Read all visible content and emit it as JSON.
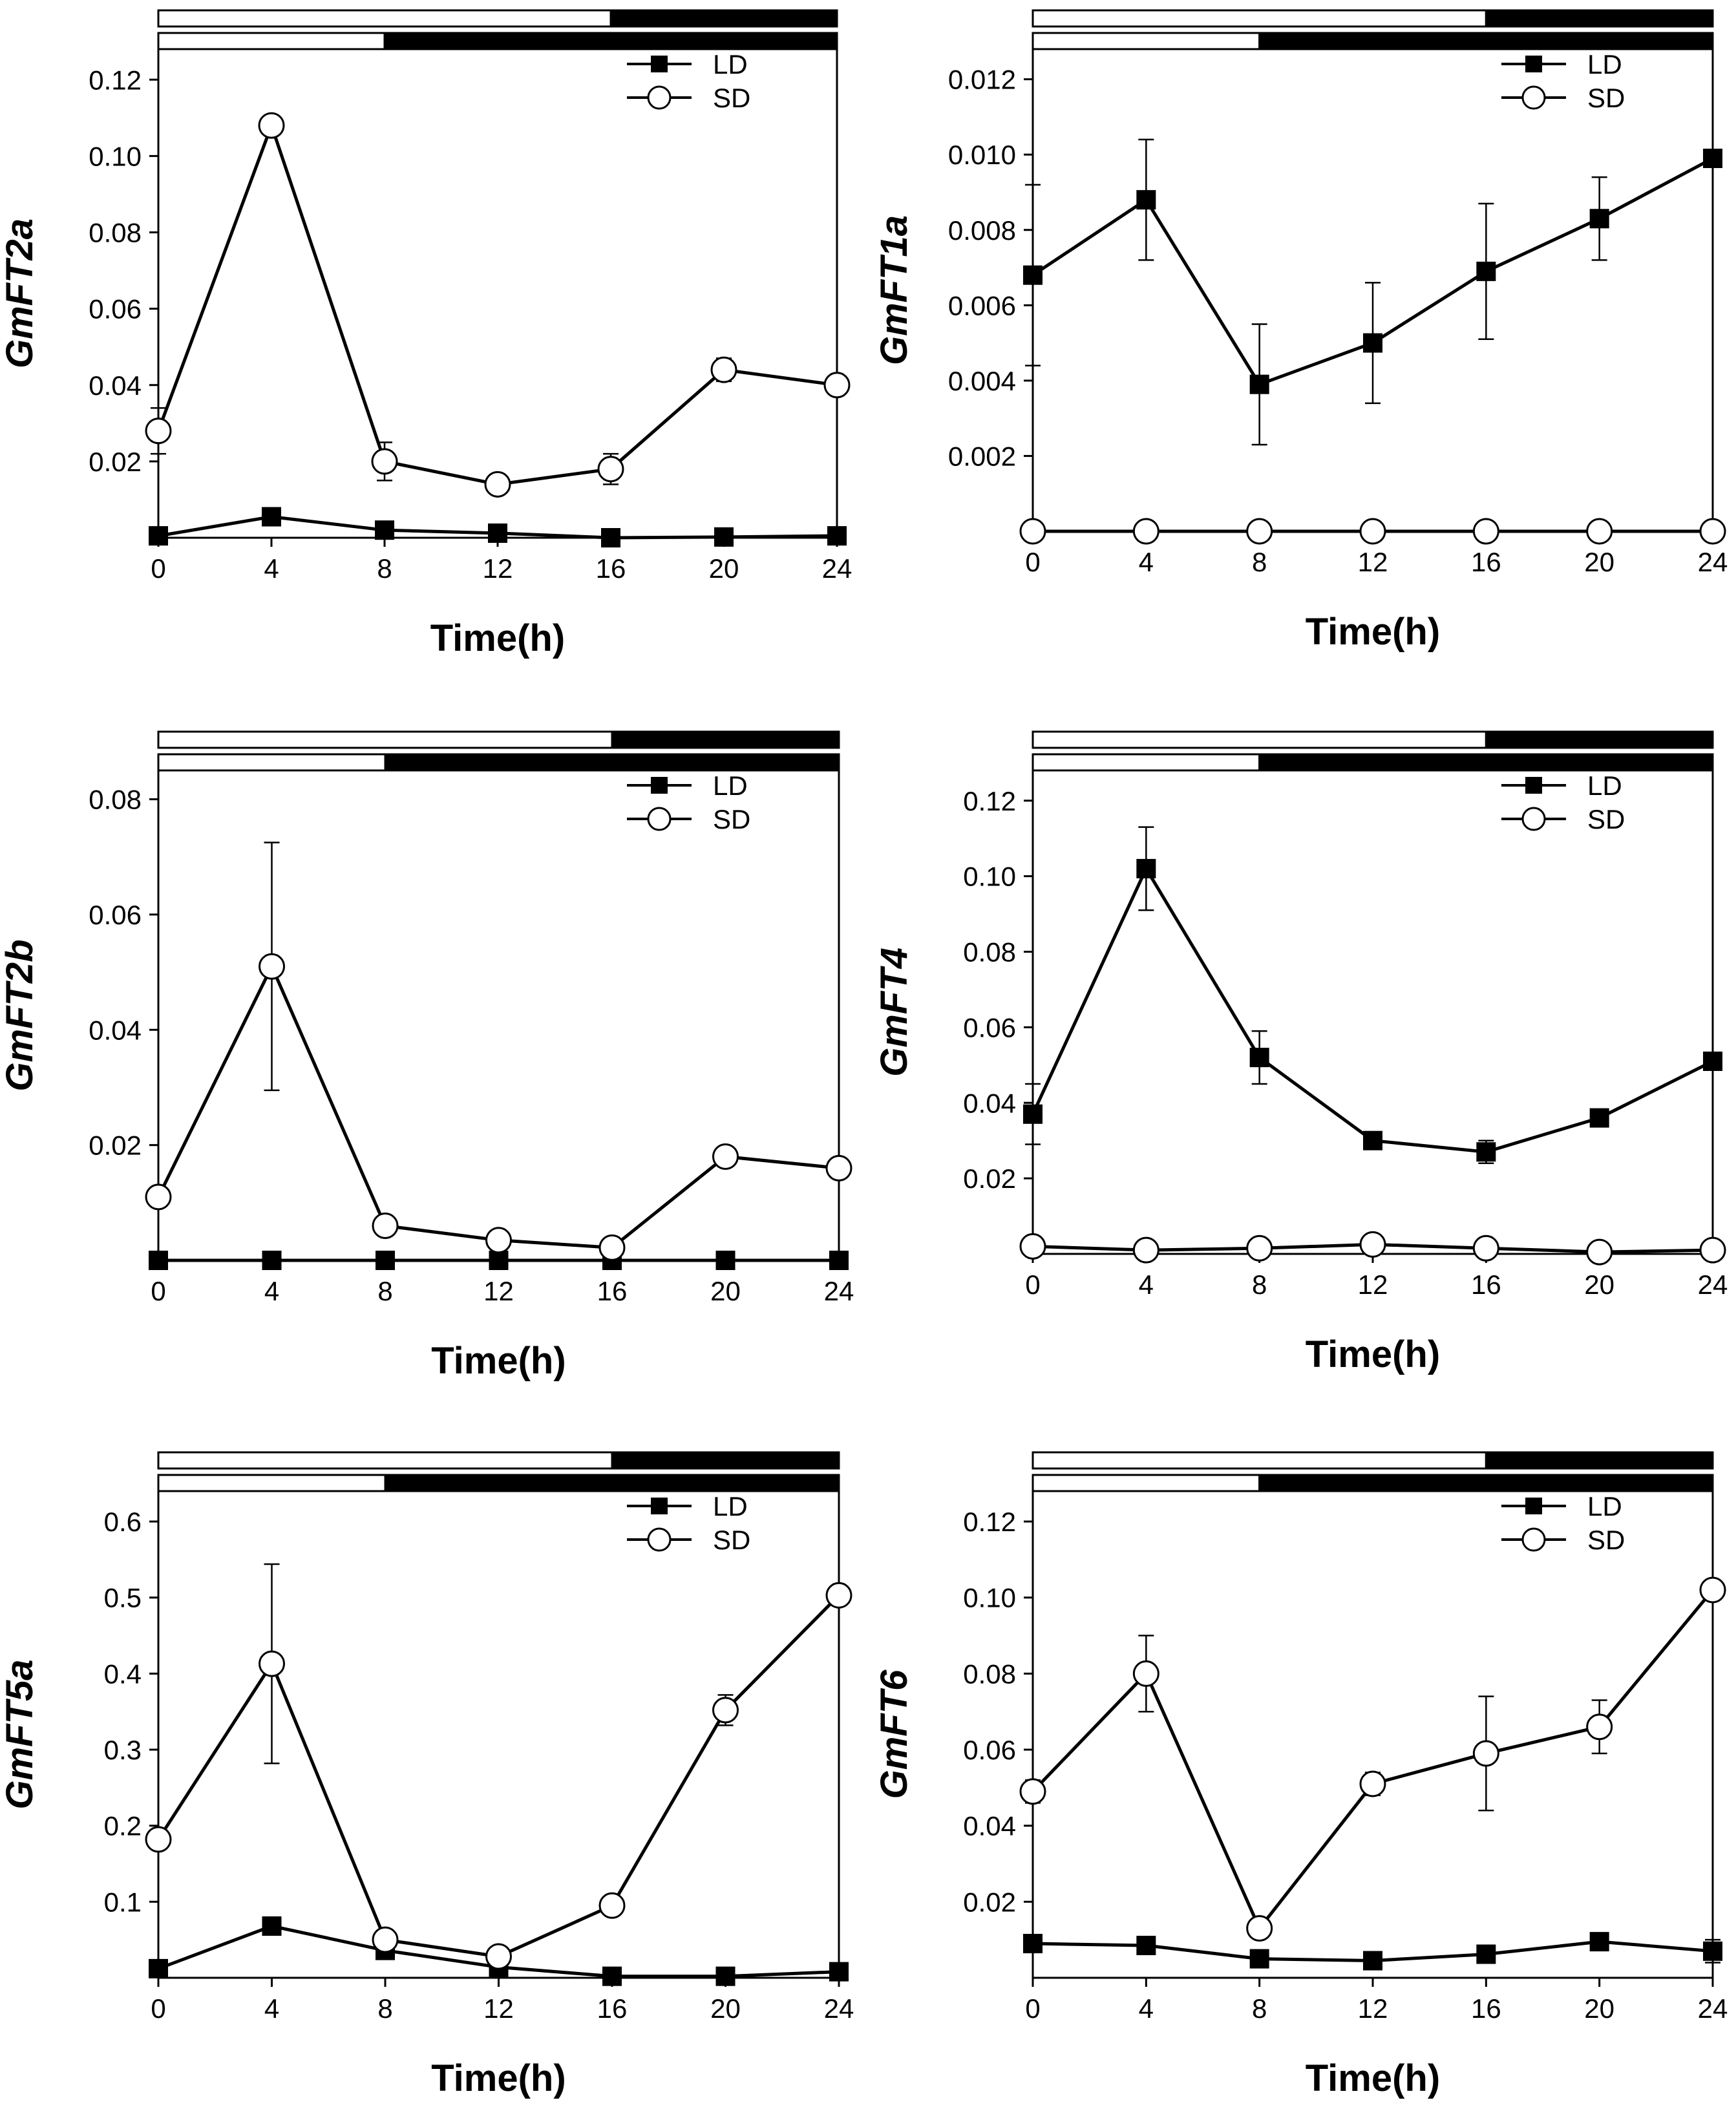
{
  "chart_data": [
    {
      "type": "line",
      "ylabel": "GmFT2a",
      "xlabel": "Time(h)",
      "x": [
        0,
        4,
        8,
        12,
        16,
        20,
        24
      ],
      "xlim": [
        0,
        24
      ],
      "ylim": [
        0,
        0.128
      ],
      "yticks": [
        0.02,
        0.04,
        0.06,
        0.08,
        0.1,
        0.12
      ],
      "ytick_labels": [
        "0.02",
        "0.04",
        "0.06",
        "0.08",
        "0.10",
        "0.12"
      ],
      "legend": [
        "LD",
        "SD"
      ],
      "series": [
        {
          "name": "LD",
          "marker": "filled-square",
          "values": [
            0.0005,
            0.0055,
            0.002,
            0.0012,
            0.0,
            0.0002,
            0.0005
          ],
          "errors": [
            0,
            0.001,
            0,
            0,
            0,
            0,
            0
          ]
        },
        {
          "name": "SD",
          "marker": "open-circle",
          "values": [
            0.028,
            0.108,
            0.02,
            0.014,
            0.018,
            0.044,
            0.04
          ],
          "errors": [
            0.006,
            0,
            0.005,
            0,
            0.004,
            0.003,
            0
          ]
        }
      ]
    },
    {
      "type": "line",
      "ylabel": "GmFT1a",
      "xlabel": "Time(h)",
      "x": [
        0,
        4,
        8,
        12,
        16,
        20,
        24
      ],
      "xlim": [
        0,
        24
      ],
      "ylim": [
        0,
        0.0128
      ],
      "yticks": [
        0.002,
        0.004,
        0.006,
        0.008,
        0.01,
        0.012
      ],
      "ytick_labels": [
        "0.002",
        "0.004",
        "0.006",
        "0.008",
        "0.010",
        "0.012"
      ],
      "legend": [
        "LD",
        "SD"
      ],
      "series": [
        {
          "name": "LD",
          "marker": "filled-square",
          "values": [
            0.0068,
            0.0088,
            0.0039,
            0.005,
            0.0069,
            0.0083,
            0.0099
          ],
          "errors": [
            0.0024,
            0.0016,
            0.0016,
            0.0016,
            0.0018,
            0.0011,
            0
          ]
        },
        {
          "name": "SD",
          "marker": "open-circle",
          "values": [
            0,
            0,
            0,
            0,
            0,
            0,
            0
          ],
          "errors": [
            0,
            0,
            0,
            0,
            0,
            0,
            0
          ]
        }
      ]
    },
    {
      "type": "line",
      "ylabel": "GmFT2b",
      "xlabel": "Time(h)",
      "x": [
        0,
        4,
        8,
        12,
        16,
        20,
        24
      ],
      "xlim": [
        0,
        24
      ],
      "ylim": [
        0,
        0.085
      ],
      "yticks": [
        0.02,
        0.04,
        0.06,
        0.08
      ],
      "ytick_labels": [
        "0.02",
        "0.04",
        "0.06",
        "0.08"
      ],
      "legend": [
        "LD",
        "SD"
      ],
      "series": [
        {
          "name": "LD",
          "marker": "filled-square",
          "values": [
            0,
            0,
            0,
            0,
            0,
            0,
            0
          ],
          "errors": [
            0,
            0,
            0,
            0,
            0,
            0,
            0
          ]
        },
        {
          "name": "SD",
          "marker": "open-circle",
          "values": [
            0.011,
            0.051,
            0.006,
            0.0035,
            0.0022,
            0.018,
            0.016
          ],
          "errors": [
            0,
            0.0215,
            0,
            0,
            0,
            0,
            0
          ]
        }
      ]
    },
    {
      "type": "line",
      "ylabel": "GmFT4",
      "xlabel": "Time(h)",
      "x": [
        0,
        4,
        8,
        12,
        16,
        20,
        24
      ],
      "xlim": [
        0,
        24
      ],
      "ylim": [
        0,
        0.128
      ],
      "yticks": [
        0.02,
        0.04,
        0.06,
        0.08,
        0.1,
        0.12
      ],
      "ytick_labels": [
        "0.02",
        "0.04",
        "0.06",
        "0.08",
        "0.10",
        "0.12"
      ],
      "legend": [
        "LD",
        "SD"
      ],
      "series": [
        {
          "name": "LD",
          "marker": "filled-square",
          "values": [
            0.037,
            0.102,
            0.052,
            0.03,
            0.027,
            0.036,
            0.051
          ],
          "errors": [
            0.008,
            0.011,
            0.007,
            0,
            0.003,
            0.002,
            0
          ]
        },
        {
          "name": "SD",
          "marker": "open-circle",
          "values": [
            0.002,
            0.001,
            0.0015,
            0.0025,
            0.0015,
            0.0005,
            0.001
          ],
          "errors": [
            0,
            0,
            0,
            0,
            0,
            0,
            0
          ]
        }
      ]
    },
    {
      "type": "line",
      "ylabel": "GmFT5a",
      "xlabel": "Time(h)",
      "x": [
        0,
        4,
        8,
        12,
        16,
        20,
        24
      ],
      "xlim": [
        0,
        24
      ],
      "ylim": [
        0,
        0.64
      ],
      "yticks": [
        0.1,
        0.2,
        0.3,
        0.4,
        0.5,
        0.6
      ],
      "ytick_labels": [
        "0.1",
        "0.2",
        "0.3",
        "0.4",
        "0.5",
        "0.6"
      ],
      "legend": [
        "LD",
        "SD"
      ],
      "series": [
        {
          "name": "LD",
          "marker": "filled-square",
          "values": [
            0.012,
            0.068,
            0.036,
            0.014,
            0.002,
            0.002,
            0.008
          ],
          "errors": [
            0,
            0,
            0,
            0,
            0,
            0,
            0
          ]
        },
        {
          "name": "SD",
          "marker": "open-circle",
          "values": [
            0.182,
            0.413,
            0.05,
            0.028,
            0.095,
            0.352,
            0.503
          ],
          "errors": [
            0,
            0.131,
            0,
            0,
            0,
            0.02,
            0
          ]
        }
      ]
    },
    {
      "type": "line",
      "ylabel": "GmFT6",
      "xlabel": "Time(h)",
      "x": [
        0,
        4,
        8,
        12,
        16,
        20,
        24
      ],
      "xlim": [
        0,
        24
      ],
      "ylim": [
        0,
        0.128
      ],
      "yticks": [
        0.02,
        0.04,
        0.06,
        0.08,
        0.1,
        0.12
      ],
      "ytick_labels": [
        "0.02",
        "0.04",
        "0.06",
        "0.08",
        "0.10",
        "0.12"
      ],
      "legend": [
        "LD",
        "SD"
      ],
      "series": [
        {
          "name": "LD",
          "marker": "filled-square",
          "values": [
            0.009,
            0.0085,
            0.005,
            0.0045,
            0.0062,
            0.0095,
            0.007
          ],
          "errors": [
            0,
            0,
            0,
            0,
            0,
            0,
            0.003
          ]
        },
        {
          "name": "SD",
          "marker": "open-circle",
          "values": [
            0.049,
            0.08,
            0.013,
            0.051,
            0.059,
            0.066,
            0.102
          ],
          "errors": [
            0.003,
            0.01,
            0,
            0.003,
            0.015,
            0.007,
            0
          ]
        }
      ]
    }
  ],
  "photoperiod": {
    "ld": {
      "light_hours": 16,
      "dark_hours": 8
    },
    "sd": {
      "light_hours": 8,
      "dark_hours": 16
    }
  }
}
